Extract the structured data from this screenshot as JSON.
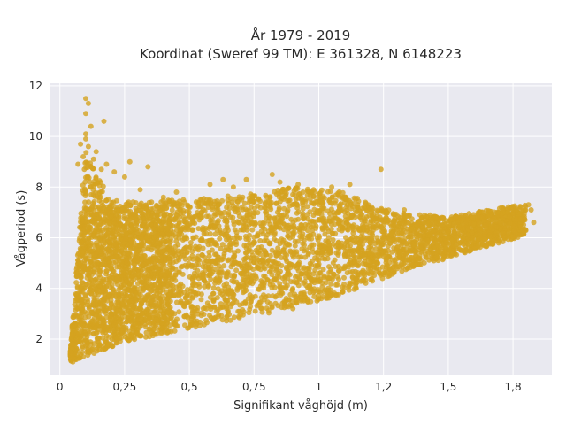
{
  "chart_data": {
    "type": "scatter",
    "title": "År 1979 - 2019",
    "subtitle": "Koordinat (Sweref 99 TM): E 361328, N 6148223",
    "xlabel": "Signifikant våghöjd (m)",
    "ylabel": "Vågperiod (s)",
    "xlim": [
      -0.04,
      1.9
    ],
    "ylim": [
      0.6,
      12.1
    ],
    "x_ticks": [
      0,
      0.25,
      0.5,
      0.75,
      1,
      1.25,
      1.5,
      1.75
    ],
    "x_tick_labels": [
      "0",
      "0,25",
      "0,5",
      "0,75",
      "1",
      "1,2",
      "1,5",
      "1,8"
    ],
    "y_ticks": [
      2,
      4,
      6,
      8,
      10,
      12
    ],
    "y_tick_labels": [
      "2",
      "4",
      "6",
      "8",
      "10",
      "12"
    ],
    "grid": true,
    "legend": false,
    "marker_color": "#D4A21F",
    "plot_bg": "#E9E9F0",
    "series_envelope": {
      "x": [
        0.04,
        0.1,
        0.2,
        0.3,
        0.4,
        0.5,
        0.6,
        0.7,
        0.8,
        0.9,
        1.0,
        1.1,
        1.2,
        1.3,
        1.4,
        1.5,
        1.6,
        1.7,
        1.8
      ],
      "y_min": [
        1.1,
        1.3,
        1.7,
        2.0,
        2.2,
        2.4,
        2.6,
        2.8,
        3.0,
        3.3,
        3.5,
        3.8,
        4.2,
        4.6,
        4.9,
        5.2,
        5.5,
        5.8,
        6.1
      ],
      "y_max": [
        1.6,
        9.5,
        7.5,
        7.4,
        7.5,
        7.5,
        7.6,
        7.7,
        7.8,
        8.0,
        7.9,
        7.8,
        7.3,
        7.0,
        6.9,
        6.8,
        7.0,
        7.2,
        7.3
      ]
    },
    "points": [
      [
        0.1,
        11.5
      ],
      [
        0.11,
        11.3
      ],
      [
        0.1,
        10.9
      ],
      [
        0.12,
        10.4
      ],
      [
        0.1,
        10.1
      ],
      [
        0.17,
        10.6
      ],
      [
        0.08,
        9.7
      ],
      [
        0.11,
        9.6
      ],
      [
        0.14,
        9.4
      ],
      [
        0.1,
        9.9
      ],
      [
        0.09,
        9.2
      ],
      [
        0.13,
        9.1
      ],
      [
        0.07,
        8.9
      ],
      [
        0.12,
        8.8
      ],
      [
        0.16,
        8.7
      ],
      [
        0.18,
        8.9
      ],
      [
        0.21,
        8.6
      ],
      [
        0.25,
        8.4
      ],
      [
        0.27,
        9.0
      ],
      [
        0.34,
        8.8
      ],
      [
        0.31,
        7.9
      ],
      [
        0.4,
        7.6
      ],
      [
        0.45,
        7.8
      ],
      [
        0.58,
        8.1
      ],
      [
        0.63,
        8.3
      ],
      [
        0.67,
        8.0
      ],
      [
        0.72,
        8.3
      ],
      [
        0.82,
        8.5
      ],
      [
        0.85,
        8.2
      ],
      [
        0.92,
        8.1
      ],
      [
        0.98,
        7.9
      ],
      [
        1.05,
        8.0
      ],
      [
        1.12,
        8.1
      ],
      [
        1.24,
        8.7
      ],
      [
        1.18,
        7.4
      ],
      [
        1.33,
        7.1
      ],
      [
        1.43,
        6.9
      ],
      [
        1.55,
        6.9
      ],
      [
        1.63,
        6.8
      ],
      [
        1.71,
        7.1
      ],
      [
        1.78,
        7.2
      ],
      [
        1.81,
        7.3
      ],
      [
        1.82,
        7.1
      ],
      [
        1.83,
        6.6
      ],
      [
        1.79,
        6.2
      ],
      [
        0.04,
        1.5
      ],
      [
        0.06,
        1.2
      ],
      [
        0.05,
        1.1
      ],
      [
        0.09,
        1.3
      ],
      [
        0.05,
        1.8
      ],
      [
        0.07,
        2.2
      ],
      [
        0.08,
        2.6
      ],
      [
        0.9,
        3.2
      ],
      [
        1.0,
        3.6
      ]
    ]
  }
}
